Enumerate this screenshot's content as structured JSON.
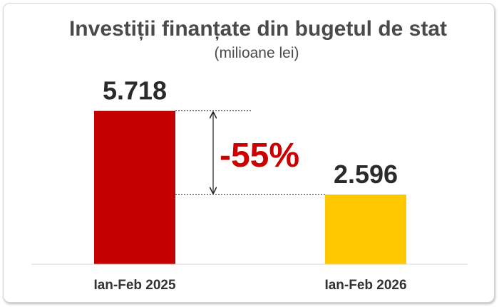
{
  "chart_data": {
    "type": "bar",
    "title": "Investiții finanțate din bugetul de stat",
    "subtitle": "(milioane lei)",
    "categories": [
      "Ian-Feb 2025",
      "Ian-Feb 2026"
    ],
    "values": [
      5.718,
      2.596
    ],
    "value_labels": [
      "5.718",
      "2.596"
    ],
    "colors": [
      "#c40000",
      "#ffc800"
    ],
    "ylim": [
      0,
      6.4
    ],
    "grid": false,
    "annotation": {
      "text": "-55%",
      "color": "#cc0000"
    }
  }
}
